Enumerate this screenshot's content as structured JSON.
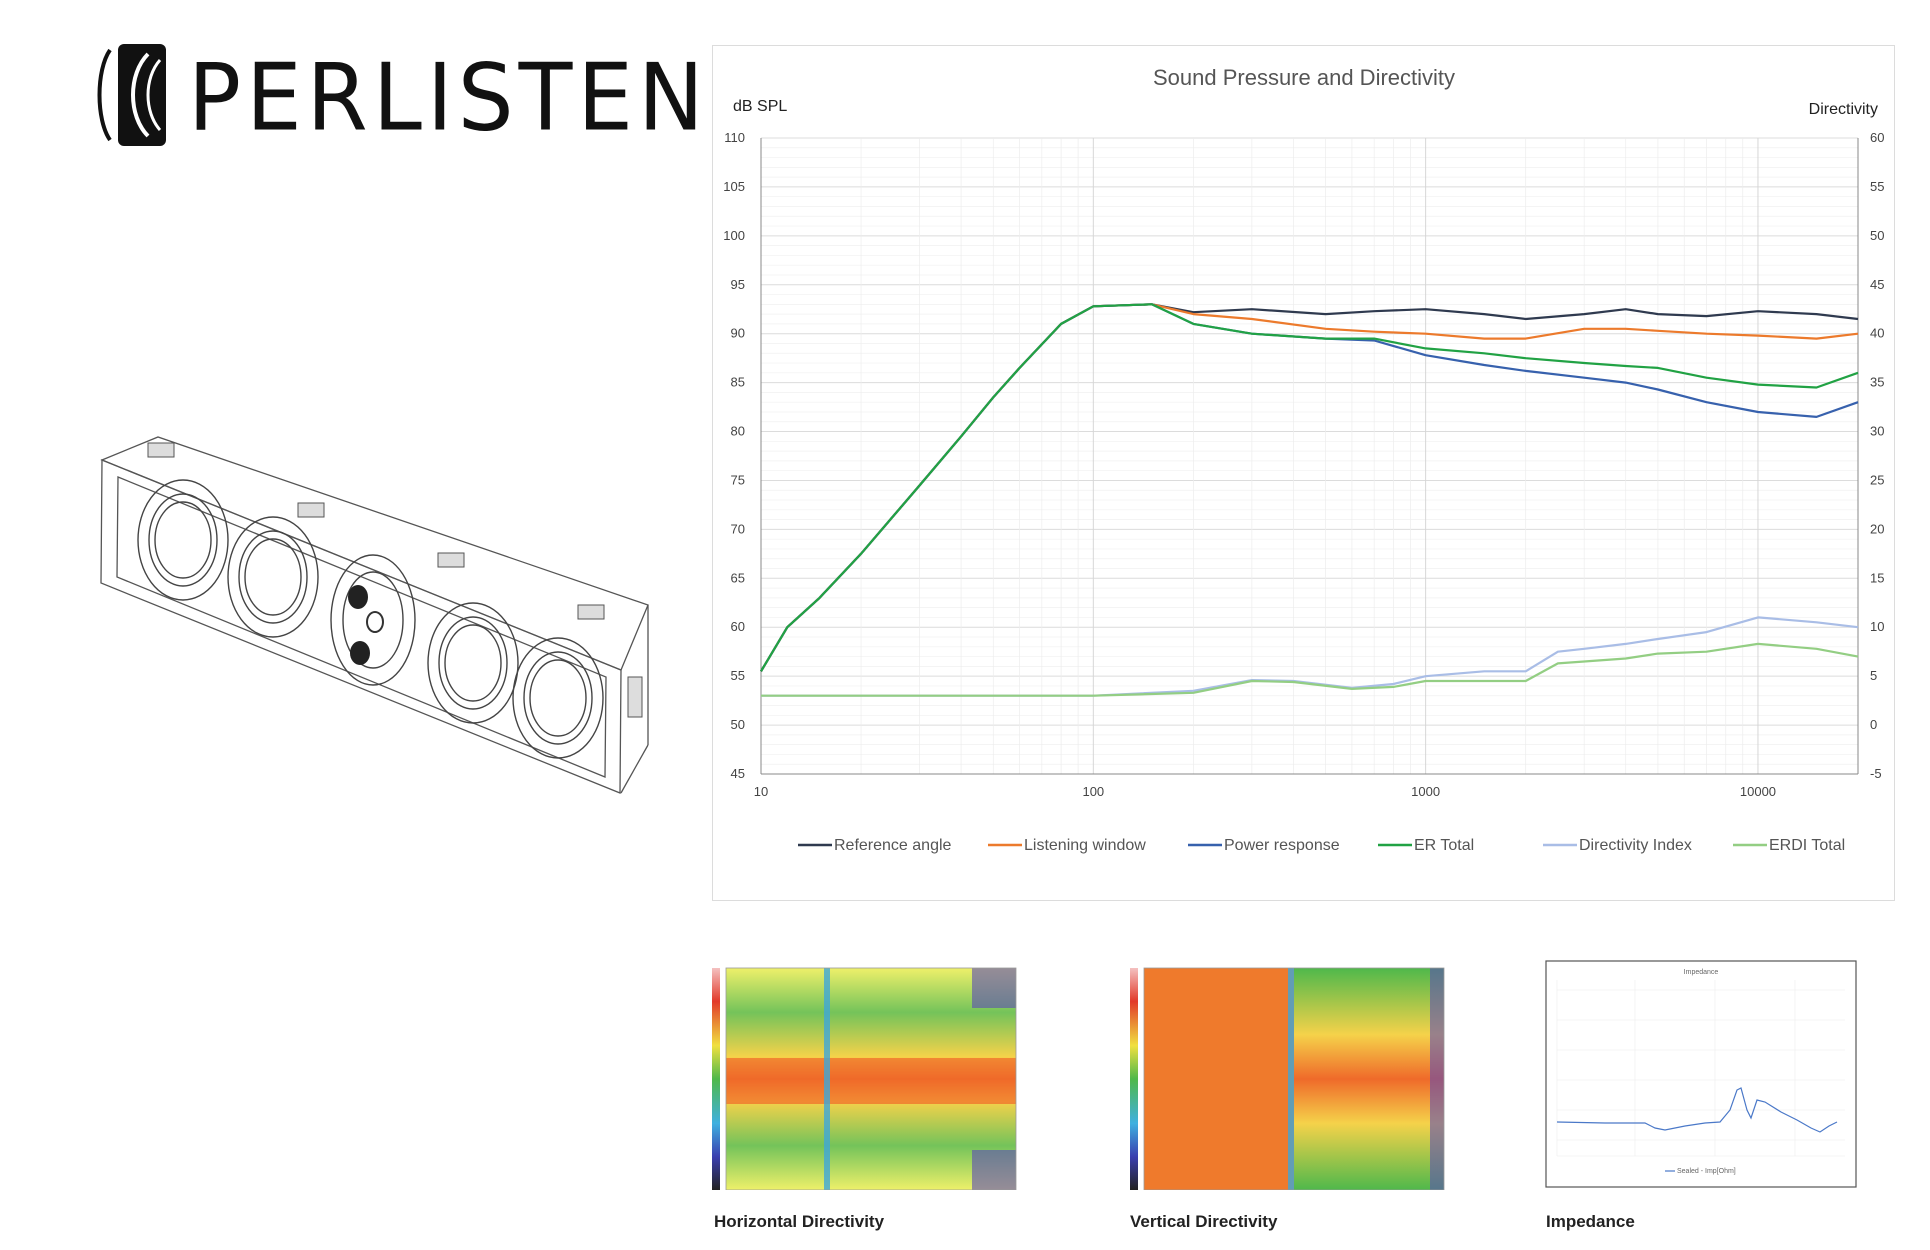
{
  "brand": {
    "name": "PERLISTEN"
  },
  "colors": {
    "reference_angle": "#2f3a4f",
    "listening_window": "#ec7a2c",
    "power_response": "#3761ad",
    "er_total": "#21a244",
    "directivity_index": "#a9bde6",
    "erdi_total": "#93ce83",
    "grid": "#e4e4e4"
  },
  "chart_data": [
    {
      "type": "line",
      "title": "Sound Pressure and Directivity",
      "ylabel": "dB SPL",
      "y2label": "Directivity",
      "xscale": "log",
      "xlim": [
        10,
        20000
      ],
      "ylim": [
        45,
        110
      ],
      "y2lim": [
        -5,
        60
      ],
      "x_ticks": [
        "10",
        "100",
        "1000",
        "10000"
      ],
      "y_ticks": [
        "110",
        "105",
        "100",
        "95",
        "90",
        "85",
        "80",
        "75",
        "70",
        "65",
        "60",
        "55",
        "50",
        "45"
      ],
      "y2_ticks": [
        "60",
        "55",
        "50",
        "45",
        "40",
        "35",
        "30",
        "25",
        "20",
        "15",
        "10",
        "5",
        "0",
        "-5"
      ],
      "legend_position": "bottom",
      "series": [
        {
          "name": "Reference angle",
          "axis": "left",
          "x": [
            10,
            12,
            15,
            20,
            30,
            40,
            50,
            60,
            80,
            100,
            150,
            200,
            300,
            500,
            700,
            1000,
            1500,
            2000,
            3000,
            4000,
            5000,
            7000,
            10000,
            15000,
            20000
          ],
          "y": [
            55.5,
            60,
            63,
            67.5,
            74.5,
            79.5,
            83.5,
            86.5,
            91,
            92.8,
            93,
            92.2,
            92.5,
            92,
            92.3,
            92.5,
            92,
            91.5,
            92,
            92.5,
            92,
            91.8,
            92.3,
            92,
            91.5
          ]
        },
        {
          "name": "Listening window",
          "axis": "left",
          "x": [
            10,
            12,
            15,
            20,
            30,
            40,
            50,
            60,
            80,
            100,
            150,
            200,
            300,
            500,
            700,
            1000,
            1500,
            2000,
            3000,
            4000,
            5000,
            7000,
            10000,
            15000,
            20000
          ],
          "y": [
            55.5,
            60,
            63,
            67.5,
            74.5,
            79.5,
            83.5,
            86.5,
            91,
            92.8,
            93,
            92,
            91.5,
            90.5,
            90.2,
            90,
            89.5,
            89.5,
            90.5,
            90.5,
            90.3,
            90,
            89.8,
            89.5,
            90
          ]
        },
        {
          "name": "Power response",
          "axis": "left",
          "x": [
            10,
            12,
            15,
            20,
            30,
            40,
            50,
            60,
            80,
            100,
            150,
            200,
            300,
            500,
            700,
            1000,
            1500,
            2000,
            3000,
            4000,
            5000,
            7000,
            10000,
            15000,
            20000
          ],
          "y": [
            55.5,
            60,
            63,
            67.5,
            74.5,
            79.5,
            83.5,
            86.5,
            91,
            92.8,
            93,
            91,
            90,
            89.5,
            89.3,
            87.8,
            86.8,
            86.2,
            85.5,
            85,
            84.3,
            83,
            82,
            81.5,
            83
          ]
        },
        {
          "name": "ER Total",
          "axis": "left",
          "x": [
            10,
            12,
            15,
            20,
            30,
            40,
            50,
            60,
            80,
            100,
            150,
            200,
            300,
            500,
            700,
            1000,
            1500,
            2000,
            3000,
            4000,
            5000,
            7000,
            10000,
            15000,
            20000
          ],
          "y": [
            55.5,
            60,
            63,
            67.5,
            74.5,
            79.5,
            83.5,
            86.5,
            91,
            92.8,
            93,
            91,
            90,
            89.5,
            89.5,
            88.5,
            88,
            87.5,
            87,
            86.7,
            86.5,
            85.5,
            84.8,
            84.5,
            86
          ]
        },
        {
          "name": "Directivity Index",
          "axis": "right",
          "x": [
            10,
            100,
            200,
            300,
            400,
            600,
            800,
            1000,
            1500,
            2000,
            2500,
            3000,
            4000,
            5000,
            7000,
            10000,
            15000,
            20000
          ],
          "y": [
            3,
            3,
            3.5,
            4.6,
            4.5,
            3.8,
            4.2,
            5,
            5.5,
            5.5,
            7.5,
            7.8,
            8.3,
            8.8,
            9.5,
            11,
            10.5,
            10
          ]
        },
        {
          "name": "ERDI Total",
          "axis": "right",
          "x": [
            10,
            100,
            200,
            300,
            400,
            600,
            800,
            1000,
            1500,
            2000,
            2500,
            3000,
            4000,
            5000,
            7000,
            10000,
            15000,
            20000
          ],
          "y": [
            3,
            3,
            3.3,
            4.5,
            4.4,
            3.7,
            3.9,
            4.5,
            4.5,
            4.5,
            6.3,
            6.5,
            6.8,
            7.3,
            7.5,
            8.3,
            7.8,
            7
          ]
        }
      ]
    },
    {
      "type": "heatmap",
      "title": "Horizontal Directivity"
    },
    {
      "type": "heatmap",
      "title": "Vertical Directivity"
    },
    {
      "type": "line",
      "title": "Impedance",
      "inner_title": "Impedance",
      "legend": "Sealed - Imp[Ohm]"
    }
  ],
  "labels": {
    "horizontal": "Horizontal Directivity",
    "vertical": "Vertical Directivity",
    "impedance": "Impedance",
    "impedance_inner_title": "Impedance",
    "impedance_legend": "Sealed - Imp[Ohm]"
  }
}
